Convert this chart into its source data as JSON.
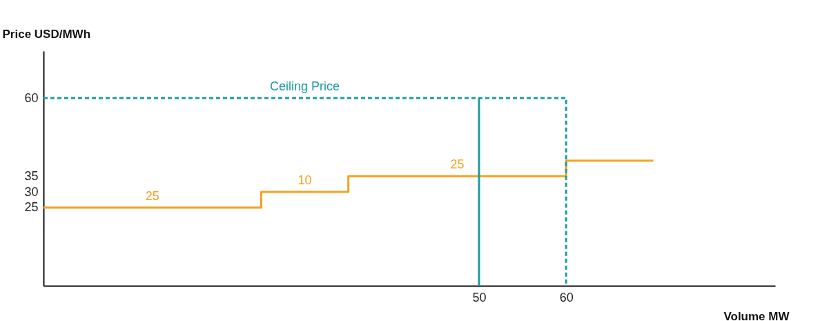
{
  "chart_data": {
    "type": "line",
    "xlabel": "Volume MW",
    "ylabel": "Price USD/MWh",
    "xlim": [
      0,
      84
    ],
    "ylim": [
      0,
      75
    ],
    "xticks": [
      50,
      60
    ],
    "yticks": [
      25,
      30,
      35,
      60
    ],
    "grid": false,
    "series": [
      {
        "type": "step",
        "color": "#f5a11c",
        "line_style": "solid",
        "x": [
          0,
          25,
          35,
          60,
          70
        ],
        "values": [
          25,
          30,
          35,
          40,
          40
        ]
      },
      {
        "name": "Ceiling Price",
        "color": "#1a9ba1",
        "line_style": "dashed",
        "x": [
          0,
          60,
          60
        ],
        "values": [
          60,
          60,
          0
        ]
      },
      {
        "color": "#1a9ba1",
        "line_style": "solid",
        "x": [
          50,
          50
        ],
        "values": [
          0,
          60
        ]
      }
    ],
    "annotations": [
      {
        "text": "25",
        "x": 12.5,
        "y": 25
      },
      {
        "text": "10",
        "x": 30,
        "y": 30
      },
      {
        "text": "25",
        "x": 47.5,
        "y": 35
      }
    ]
  }
}
